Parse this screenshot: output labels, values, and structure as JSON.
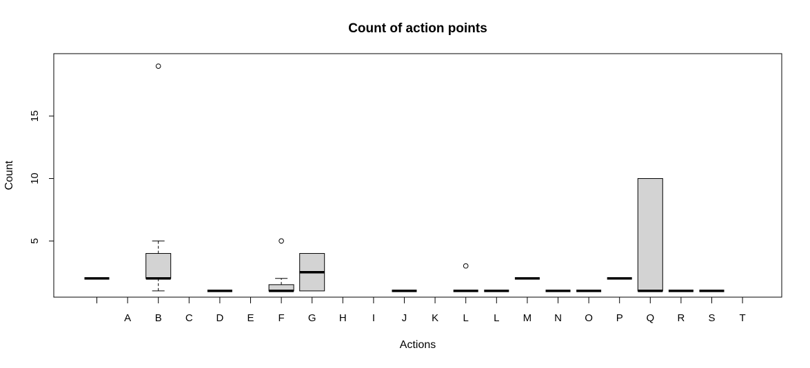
{
  "chart_data": {
    "type": "boxplot",
    "title": "Count of action points",
    "xlabel": "Actions",
    "ylabel": "Count",
    "ylim": [
      0.5,
      20
    ],
    "y_ticks": [
      5,
      10,
      15
    ],
    "x_tick_labels": [
      "",
      "A",
      "B",
      "C",
      "D",
      "E",
      "F",
      "G",
      "H",
      "I",
      "J",
      "K",
      "L",
      "L",
      "M",
      "N",
      "O",
      "P",
      "Q",
      "R",
      "S",
      "T"
    ],
    "box_fill_color": "#d3d3d3",
    "line_color": "#000000",
    "grid": false,
    "legend": "none",
    "boxes": [
      {
        "label": "",
        "lower_whisker": 2,
        "q1": 2,
        "median": 2,
        "q3": 2,
        "upper_whisker": 2,
        "outliers": []
      },
      {
        "label": "A"
      },
      {
        "label": "B",
        "lower_whisker": 1,
        "q1": 2,
        "median": 2,
        "q3": 4,
        "upper_whisker": 5,
        "outliers": [
          19
        ]
      },
      {
        "label": "C"
      },
      {
        "label": "D",
        "lower_whisker": 1,
        "q1": 1,
        "median": 1,
        "q3": 1,
        "upper_whisker": 1,
        "outliers": []
      },
      {
        "label": "E"
      },
      {
        "label": "F",
        "lower_whisker": 1,
        "q1": 1,
        "median": 1,
        "q3": 1.5,
        "upper_whisker": 2,
        "outliers": [
          5
        ]
      },
      {
        "label": "G",
        "lower_whisker": 1,
        "q1": 1,
        "median": 2.5,
        "q3": 4,
        "upper_whisker": 4,
        "outliers": []
      },
      {
        "label": "H"
      },
      {
        "label": "I"
      },
      {
        "label": "J",
        "lower_whisker": 1,
        "q1": 1,
        "median": 1,
        "q3": 1,
        "upper_whisker": 1,
        "outliers": []
      },
      {
        "label": "K"
      },
      {
        "label": "L",
        "lower_whisker": 1,
        "q1": 1,
        "median": 1,
        "q3": 1,
        "upper_whisker": 1,
        "outliers": [
          3
        ]
      },
      {
        "label": "L",
        "lower_whisker": 1,
        "q1": 1,
        "median": 1,
        "q3": 1,
        "upper_whisker": 1,
        "outliers": []
      },
      {
        "label": "M",
        "lower_whisker": 2,
        "q1": 2,
        "median": 2,
        "q3": 2,
        "upper_whisker": 2,
        "outliers": []
      },
      {
        "label": "N",
        "lower_whisker": 1,
        "q1": 1,
        "median": 1,
        "q3": 1,
        "upper_whisker": 1,
        "outliers": []
      },
      {
        "label": "O",
        "lower_whisker": 1,
        "q1": 1,
        "median": 1,
        "q3": 1,
        "upper_whisker": 1,
        "outliers": []
      },
      {
        "label": "P",
        "lower_whisker": 2,
        "q1": 2,
        "median": 2,
        "q3": 2,
        "upper_whisker": 2,
        "outliers": []
      },
      {
        "label": "Q",
        "lower_whisker": 1,
        "q1": 1,
        "median": 1,
        "q3": 10,
        "upper_whisker": 10,
        "outliers": []
      },
      {
        "label": "R",
        "lower_whisker": 1,
        "q1": 1,
        "median": 1,
        "q3": 1,
        "upper_whisker": 1,
        "outliers": []
      },
      {
        "label": "S",
        "lower_whisker": 1,
        "q1": 1,
        "median": 1,
        "q3": 1,
        "upper_whisker": 1,
        "outliers": []
      },
      {
        "label": "T"
      }
    ]
  }
}
